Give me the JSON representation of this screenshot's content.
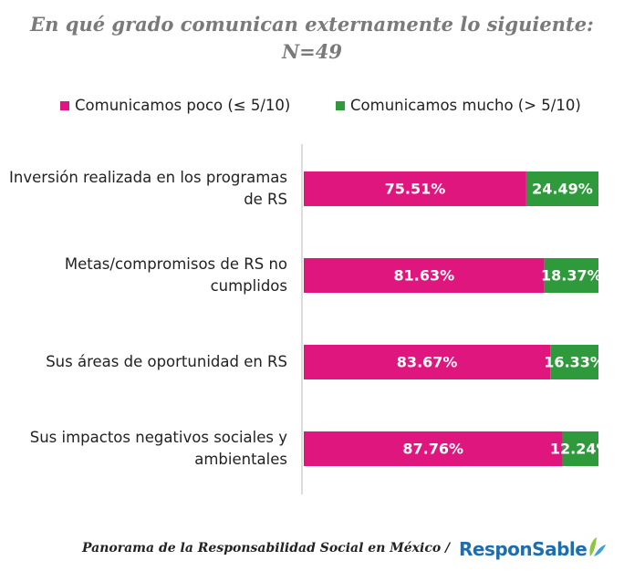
{
  "chart_data": {
    "type": "stacked_bar_horizontal",
    "title": "En qué grado comunican externamente lo siguiente:",
    "subtitle": "N=49",
    "categories": [
      "Inversión realizada en los programas de RS",
      "Metas/compromisos de RS no cumplidos",
      "Sus áreas de oportunidad en RS",
      "Sus impactos negativos sociales y ambientales"
    ],
    "series": [
      {
        "name": "Comunicamos poco (≤ 5/10)",
        "color": "#e0167f",
        "values": [
          75.51,
          81.63,
          83.67,
          87.76
        ],
        "value_labels": [
          "75.51%",
          "81.63%",
          "83.67%",
          "87.76%"
        ]
      },
      {
        "name": "Comunicamos mucho (> 5/10)",
        "color": "#2f9a3c",
        "values": [
          24.49,
          18.37,
          16.33,
          12.24
        ],
        "value_labels": [
          "24.49%",
          "18.37%",
          "16.33%",
          "12.24%"
        ]
      }
    ],
    "legend": "top",
    "footer": "Panorama de la Responsabilidad Social en México  /",
    "logo": "ResponSable"
  }
}
